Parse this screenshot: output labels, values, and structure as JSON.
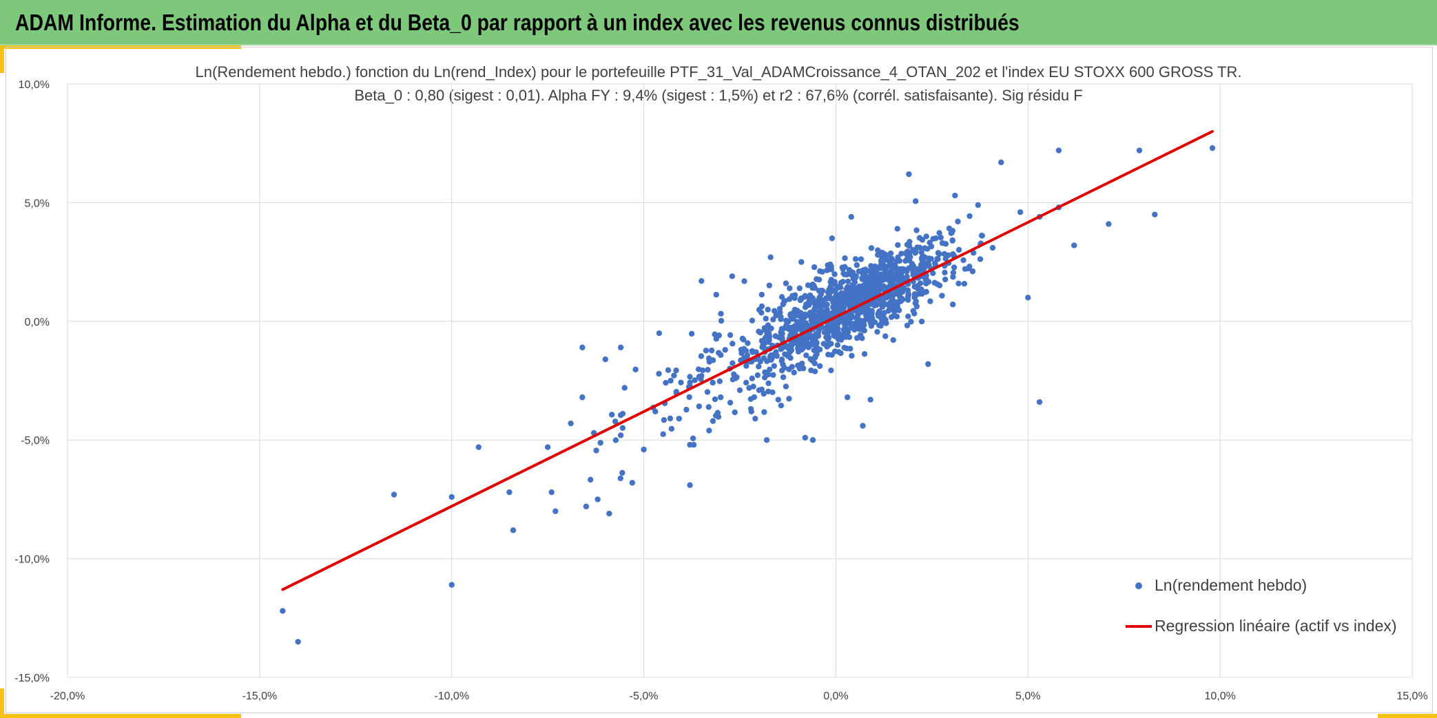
{
  "header": {
    "title": "ADAM Informe. Estimation du Alpha et du Beta_0 par rapport à un index avec les revenus connus distribués"
  },
  "colors": {
    "header_bg": "#7ec87b",
    "accent": "#f5c211",
    "points": "#4472c4",
    "regression": "#e00000",
    "grid": "#d9d9d9",
    "text": "#404040"
  },
  "chart_data": {
    "type": "scatter",
    "title_line1": "Ln(Rendement hebdo.) fonction du Ln(rend_Index) pour le portefeuille PTF_31_Val_ADAMCroissance_4_OTAN_202 et l'index EU STOXX 600 GROSS TR.",
    "title_line2": "Beta_0 : 0,80 (sigest : 0,01). Alpha FY : 9,4% (sigest : 1,5%) et r2 : 67,6% (corrél. satisfaisante). Sig résidu F",
    "xlim": [
      -20,
      15
    ],
    "ylim": [
      -15,
      10
    ],
    "x_ticks": [
      -20,
      -15,
      -10,
      -5,
      0,
      5,
      10,
      15
    ],
    "y_ticks": [
      10,
      5,
      0,
      -5,
      -10,
      -15
    ],
    "x_tick_labels": [
      "-20,0%",
      "-15,0%",
      "-10,0%",
      "-5,0%",
      "0,0%",
      "5,0%",
      "10,0%",
      "15,0%"
    ],
    "y_tick_labels": [
      "10,0%",
      "5,0%",
      "0,0%",
      "-5,0%",
      "-10,0%",
      "-15,0%"
    ],
    "grid": true,
    "legend_position": "bottom-right",
    "series": [
      {
        "name": "Ln(rendement hebdo)",
        "kind": "points",
        "x": [
          -14.4,
          -14.0,
          -11.5,
          -10.0,
          -10.0,
          -9.3,
          -8.5,
          -8.4,
          -7.4,
          -7.5,
          -7.3,
          -6.5,
          -6.6,
          -6.2,
          -6.0,
          -5.9,
          -5.6,
          -5.3,
          -5.0,
          -4.6,
          -4.3,
          -3.8,
          -3.8,
          -3.7,
          -3.3,
          -3.0,
          -2.7,
          -2.5,
          -2.0,
          -1.7,
          -1.3,
          -0.8,
          -0.6,
          -6.6,
          -5.6,
          -4.7,
          -3.5,
          -2.1,
          -1.5,
          0.3,
          0.9,
          1.9,
          3.1,
          3.7,
          4.3,
          4.8,
          5.3,
          5.8,
          7.1,
          7.9,
          9.8,
          8.3,
          6.2,
          5.8,
          5.0,
          2.4,
          5.3,
          0.7,
          0.4,
          -3.5,
          -2.2,
          -1.2,
          -0.1,
          1.2,
          1.6,
          -6.3,
          -6.9,
          -5.5,
          -3.2,
          -1.8,
          -0.9,
          -0.2,
          2.6
        ],
        "y": [
          -12.2,
          -13.5,
          -7.3,
          -7.4,
          -11.1,
          -5.3,
          -7.2,
          -8.8,
          -7.2,
          -5.3,
          -8.0,
          -7.8,
          -1.1,
          -7.5,
          -1.6,
          -8.1,
          -1.1,
          -6.8,
          -5.4,
          -0.5,
          -2.5,
          -6.9,
          -5.2,
          -5.2,
          -4.6,
          -3.2,
          1.9,
          -2.9,
          -2.9,
          2.7,
          1.6,
          -4.9,
          -5.0,
          -3.2,
          -4.8,
          -3.8,
          1.7,
          -4.1,
          -3.3,
          -3.2,
          -3.3,
          6.2,
          5.3,
          4.9,
          6.7,
          4.6,
          4.4,
          7.2,
          4.1,
          7.2,
          7.3,
          4.5,
          3.2,
          4.8,
          1.0,
          -1.8,
          -3.4,
          -4.4,
          4.4,
          -2.3,
          -3.8,
          -1.3,
          3.5,
          2.9,
          3.9,
          -4.7,
          -4.3,
          -2.8,
          -4.2,
          -5.0,
          2.5,
          -1.4,
          3.5
        ],
        "cluster_note": "Dense cloud of about 1000 weekly observations concentrated between -2% and +3.5% on x and -2.5% and +4% on y, following the regression line."
      },
      {
        "name": "Regression linéaire (actif vs index)",
        "kind": "line",
        "x": [
          -14.4,
          9.8
        ],
        "y": [
          -11.3,
          8.0
        ]
      }
    ]
  }
}
